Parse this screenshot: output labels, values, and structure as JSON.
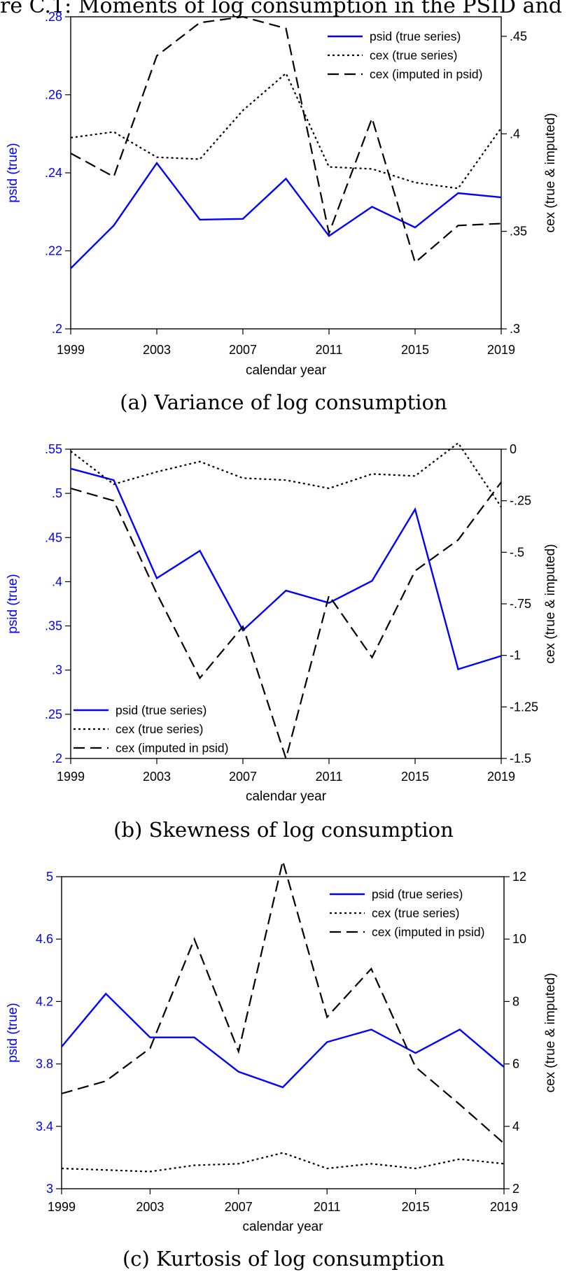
{
  "figure_title": "re C.1: Moments of log consumption in the PSID and",
  "colors": {
    "psid": "#0000ff",
    "cex": "#000000"
  },
  "chart_data": [
    {
      "type": "line",
      "panel": "a",
      "caption": "(a) Variance of log consumption",
      "xlabel": "calendar year",
      "ylabel_left": "psid (true)",
      "ylabel_right": "cex (true & imputed)",
      "x": [
        1999,
        2001,
        2003,
        2005,
        2007,
        2009,
        2011,
        2013,
        2015,
        2017,
        2019
      ],
      "xlim": [
        1999,
        2019
      ],
      "x_ticks": [
        1999,
        2003,
        2007,
        2011,
        2015,
        2019
      ],
      "ylim_left": [
        0.2,
        0.28
      ],
      "left_ticks": [
        0.2,
        0.22,
        0.24,
        0.26,
        0.28
      ],
      "left_tick_labels": [
        ".2",
        ".22",
        ".24",
        ".26",
        ".28"
      ],
      "ylim_right": [
        0.3,
        0.46
      ],
      "right_ticks": [
        0.3,
        0.35,
        0.4,
        0.45
      ],
      "right_tick_labels": [
        ".3",
        ".35",
        ".4",
        ".45"
      ],
      "legend_position": "top-right",
      "series": [
        {
          "name": "psid (true series)",
          "axis": "left",
          "style": "solid",
          "values": [
            0.2155,
            0.2265,
            0.2425,
            0.228,
            0.2282,
            0.2385,
            0.2238,
            0.2313,
            0.226,
            0.2348,
            0.2337
          ]
        },
        {
          "name": "cex (true series)",
          "axis": "right",
          "style": "dotted",
          "values": [
            0.398,
            0.401,
            0.388,
            0.387,
            0.412,
            0.431,
            0.383,
            0.382,
            0.375,
            0.372,
            0.403
          ]
        },
        {
          "name": "cex (imputed in psid)",
          "axis": "right",
          "style": "dashed",
          "values": [
            0.39,
            0.378,
            0.44,
            0.457,
            0.46,
            0.454,
            0.349,
            0.408,
            0.334,
            0.353,
            0.354
          ]
        }
      ]
    },
    {
      "type": "line",
      "panel": "b",
      "caption": "(b) Skewness of log consumption",
      "xlabel": "calendar year",
      "ylabel_left": "psid (true)",
      "ylabel_right": "cex (true & imputed)",
      "x": [
        1999,
        2001,
        2003,
        2005,
        2007,
        2009,
        2011,
        2013,
        2015,
        2017,
        2019
      ],
      "xlim": [
        1999,
        2019
      ],
      "x_ticks": [
        1999,
        2003,
        2007,
        2011,
        2015,
        2019
      ],
      "ylim_left": [
        0.2,
        0.55
      ],
      "left_ticks": [
        0.2,
        0.25,
        0.3,
        0.35,
        0.4,
        0.45,
        0.5,
        0.55
      ],
      "left_tick_labels": [
        ".2",
        ".25",
        ".3",
        ".35",
        ".4",
        ".45",
        ".5",
        ".55"
      ],
      "ylim_right": [
        -1.5,
        0
      ],
      "right_ticks": [
        0,
        -0.25,
        -0.5,
        -0.75,
        -1,
        -1.25,
        -1.5
      ],
      "right_tick_labels": [
        "0",
        "-.25",
        "-.5",
        "-.75",
        "-1",
        "-1.25",
        "-1.5"
      ],
      "legend_position": "bottom-left",
      "series": [
        {
          "name": "psid (true series)",
          "axis": "left",
          "style": "solid",
          "values": [
            0.528,
            0.515,
            0.404,
            0.435,
            0.345,
            0.39,
            0.376,
            0.401,
            0.482,
            0.301,
            0.316
          ]
        },
        {
          "name": "cex (true series)",
          "axis": "right",
          "style": "dotted",
          "values": [
            -0.01,
            -0.17,
            -0.11,
            -0.06,
            -0.14,
            -0.15,
            -0.19,
            -0.12,
            -0.13,
            0.03,
            -0.28
          ]
        },
        {
          "name": "cex (imputed in psid)",
          "axis": "right",
          "style": "dashed",
          "values": [
            -0.19,
            -0.25,
            -0.7,
            -1.11,
            -0.86,
            -1.5,
            -0.71,
            -1.01,
            -0.59,
            -0.44,
            -0.16
          ]
        }
      ]
    },
    {
      "type": "line",
      "panel": "c",
      "caption": "(c) Kurtosis of log consumption",
      "xlabel": "calendar year",
      "ylabel_left": "psid (true)",
      "ylabel_right": "cex (true & imputed)",
      "x": [
        1999,
        2001,
        2003,
        2005,
        2007,
        2009,
        2011,
        2013,
        2015,
        2017,
        2019
      ],
      "xlim": [
        1999,
        2019
      ],
      "x_ticks": [
        1999,
        2003,
        2007,
        2011,
        2015,
        2019
      ],
      "ylim_left": [
        3.0,
        5.0
      ],
      "left_ticks": [
        3.0,
        3.4,
        3.8,
        4.2,
        4.6,
        5.0
      ],
      "left_tick_labels": [
        "3",
        "3.4",
        "3.8",
        "4.2",
        "4.6",
        "5"
      ],
      "ylim_right": [
        2,
        12
      ],
      "right_ticks": [
        2,
        4,
        6,
        8,
        10,
        12
      ],
      "right_tick_labels": [
        "2",
        "4",
        "6",
        "8",
        "10",
        "12"
      ],
      "legend_position": "top-right",
      "series": [
        {
          "name": "psid (true series)",
          "axis": "left",
          "style": "solid",
          "values": [
            3.91,
            4.25,
            3.97,
            3.97,
            3.75,
            3.65,
            3.94,
            4.02,
            3.87,
            4.02,
            3.78
          ]
        },
        {
          "name": "cex (true series)",
          "axis": "right",
          "style": "dotted",
          "values": [
            2.65,
            2.6,
            2.55,
            2.75,
            2.8,
            3.15,
            2.65,
            2.8,
            2.65,
            2.95,
            2.8
          ]
        },
        {
          "name": "cex (imputed in psid)",
          "axis": "right",
          "style": "dashed",
          "values": [
            5.05,
            5.45,
            6.5,
            10.0,
            6.4,
            12.5,
            7.5,
            9.05,
            5.9,
            4.7,
            3.45
          ]
        }
      ]
    }
  ]
}
